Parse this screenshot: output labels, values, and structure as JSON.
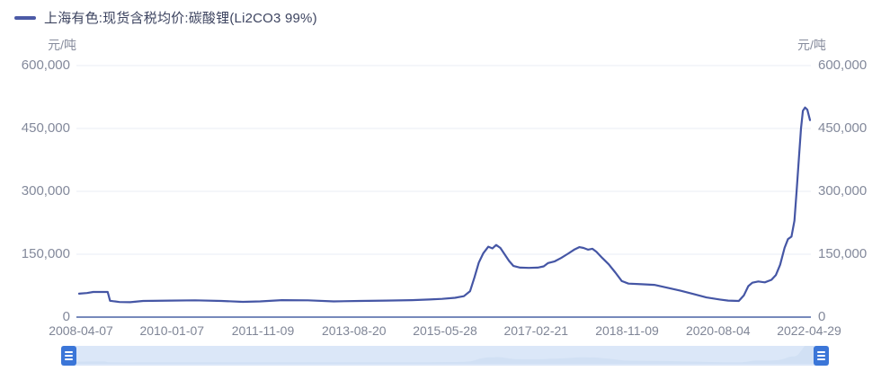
{
  "legend": {
    "label": "上海有色:现货含税均价:碳酸锂(Li2CO3 99%)"
  },
  "y_axis": {
    "unit": "元/吨"
  },
  "colors": {
    "series_line": "#4556a5",
    "legend_marker": "#4c5aa6",
    "legend_text": "#3d4460",
    "axis_line": "#7789bb",
    "gridline": "#e9ecf4",
    "tick_text": "#7f8596",
    "datazoom_handle": "#3b76d8",
    "datazoom_track": "#dbe7f8"
  },
  "chart_data": {
    "type": "line",
    "title": "上海有色:现货含税均价:碳酸锂(Li2CO3 99%)",
    "xlabel": "",
    "ylabel": "元/吨",
    "ylim": [
      0,
      600000
    ],
    "grid": true,
    "legend_position": "top-left",
    "yticks": [
      {
        "value": 600000,
        "label": "600,000"
      },
      {
        "value": 450000,
        "label": "450,000"
      },
      {
        "value": 300000,
        "label": "300,000"
      },
      {
        "value": 150000,
        "label": "150,000"
      },
      {
        "value": 0,
        "label": "0"
      }
    ],
    "xticks": [
      "2008-04-07",
      "2010-01-07",
      "2011-11-09",
      "2013-08-20",
      "2015-05-28",
      "2017-02-21",
      "2018-11-09",
      "2020-08-04",
      "2022-04-29"
    ],
    "x_range": [
      "2008-04-07",
      "2022-04-29"
    ],
    "series": [
      {
        "name": "上海有色:现货含税均价:碳酸锂(Li2CO3 99%)",
        "color": "#4556a5",
        "points": [
          [
            "2008-04-07",
            56000
          ],
          [
            "2008-06-01",
            57500
          ],
          [
            "2008-07-15",
            60000
          ],
          [
            "2008-10-25",
            60000
          ],
          [
            "2008-11-10",
            39000
          ],
          [
            "2009-01-15",
            36000
          ],
          [
            "2009-04-01",
            35500
          ],
          [
            "2009-07-01",
            38500
          ],
          [
            "2010-01-07",
            39500
          ],
          [
            "2010-07-01",
            40000
          ],
          [
            "2011-01-01",
            38500
          ],
          [
            "2011-06-01",
            36500
          ],
          [
            "2011-10-01",
            37500
          ],
          [
            "2012-03-01",
            40500
          ],
          [
            "2012-09-01",
            40000
          ],
          [
            "2013-03-01",
            37500
          ],
          [
            "2013-09-01",
            38500
          ],
          [
            "2014-03-01",
            39500
          ],
          [
            "2014-09-01",
            40500
          ],
          [
            "2015-01-01",
            42000
          ],
          [
            "2015-04-01",
            43500
          ],
          [
            "2015-07-01",
            46000
          ],
          [
            "2015-09-01",
            50000
          ],
          [
            "2015-10-15",
            62000
          ],
          [
            "2015-11-15",
            95000
          ],
          [
            "2015-12-15",
            130000
          ],
          [
            "2016-01-15",
            152000
          ],
          [
            "2016-02-20",
            168000
          ],
          [
            "2016-03-20",
            164000
          ],
          [
            "2016-04-15",
            172000
          ],
          [
            "2016-05-15",
            165000
          ],
          [
            "2016-06-15",
            149000
          ],
          [
            "2016-07-15",
            134000
          ],
          [
            "2016-08-15",
            122000
          ],
          [
            "2016-10-01",
            118000
          ],
          [
            "2016-12-01",
            117500
          ],
          [
            "2017-02-01",
            118000
          ],
          [
            "2017-03-15",
            121000
          ],
          [
            "2017-04-15",
            129000
          ],
          [
            "2017-06-01",
            133000
          ],
          [
            "2017-07-15",
            141000
          ],
          [
            "2017-09-01",
            151000
          ],
          [
            "2017-10-15",
            161000
          ],
          [
            "2017-11-20",
            167000
          ],
          [
            "2017-12-20",
            165000
          ],
          [
            "2018-01-20",
            161000
          ],
          [
            "2018-02-20",
            163000
          ],
          [
            "2018-03-20",
            156000
          ],
          [
            "2018-05-01",
            141000
          ],
          [
            "2018-06-15",
            126000
          ],
          [
            "2018-08-01",
            106000
          ],
          [
            "2018-09-15",
            86000
          ],
          [
            "2018-11-01",
            80000
          ],
          [
            "2019-02-01",
            78500
          ],
          [
            "2019-05-01",
            77000
          ],
          [
            "2019-08-01",
            70000
          ],
          [
            "2019-11-01",
            63000
          ],
          [
            "2020-02-01",
            55000
          ],
          [
            "2020-05-01",
            47000
          ],
          [
            "2020-08-04",
            42000
          ],
          [
            "2020-10-01",
            39500
          ],
          [
            "2020-12-15",
            38500
          ],
          [
            "2021-01-20",
            52000
          ],
          [
            "2021-02-20",
            74000
          ],
          [
            "2021-03-20",
            82000
          ],
          [
            "2021-05-01",
            85000
          ],
          [
            "2021-06-15",
            83000
          ],
          [
            "2021-08-01",
            89000
          ],
          [
            "2021-09-01",
            100000
          ],
          [
            "2021-10-01",
            125000
          ],
          [
            "2021-11-01",
            165000
          ],
          [
            "2021-11-25",
            186000
          ],
          [
            "2021-12-20",
            192000
          ],
          [
            "2022-01-10",
            230000
          ],
          [
            "2022-01-25",
            300000
          ],
          [
            "2022-02-10",
            380000
          ],
          [
            "2022-02-25",
            450000
          ],
          [
            "2022-03-10",
            492000
          ],
          [
            "2022-03-25",
            500000
          ],
          [
            "2022-04-10",
            495000
          ],
          [
            "2022-04-29",
            470000
          ]
        ]
      }
    ]
  }
}
